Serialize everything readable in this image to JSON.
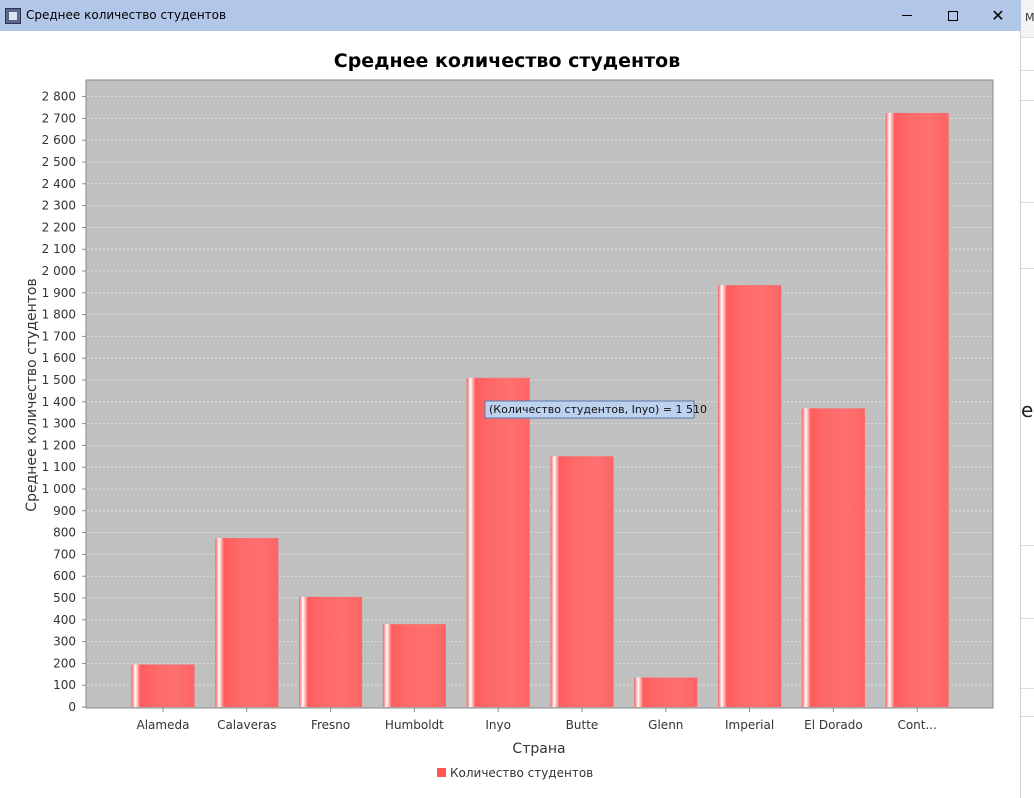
{
  "window": {
    "title": "Среднее количество студентов",
    "controls": {
      "minimize": "minimize-icon",
      "maximize": "maximize-icon",
      "close": "close-icon"
    }
  },
  "side_panel": {
    "top_text": "M",
    "letter": "e"
  },
  "chart_data": {
    "type": "bar",
    "title": "Среднее количество студентов",
    "xlabel": "Страна",
    "ylabel": "Среднее количество студентов",
    "categories": [
      "Alameda",
      "Calaveras",
      "Fresno",
      "Humboldt",
      "Inyo",
      "Butte",
      "Glenn",
      "Imperial",
      "El Dorado",
      "Cont..."
    ],
    "series": [
      {
        "name": "Количество студентов",
        "values": [
          195,
          775,
          505,
          380,
          1510,
          1150,
          135,
          1935,
          1370,
          2725
        ]
      }
    ],
    "ylim": [
      0,
      2850
    ],
    "yticks": [
      0,
      100,
      200,
      300,
      400,
      500,
      600,
      700,
      800,
      900,
      1000,
      1100,
      1200,
      1300,
      1400,
      1500,
      1600,
      1700,
      1800,
      1900,
      2000,
      2100,
      2200,
      2300,
      2400,
      2500,
      2600,
      2700,
      2800
    ],
    "ytick_labels": [
      "0",
      "100",
      "200",
      "300",
      "400",
      "500",
      "600",
      "700",
      "800",
      "900",
      "1 000",
      "1 100",
      "1 200",
      "1 300",
      "1 400",
      "1 500",
      "1 600",
      "1 700",
      "1 800",
      "1 900",
      "2 000",
      "2 100",
      "2 200",
      "2 300",
      "2 400",
      "2 500",
      "2 600",
      "2 700",
      "2 800"
    ],
    "grid": true,
    "legend_position": "bottom",
    "colors": {
      "bar": "#ff6666",
      "plot_background": "#c0c0c0",
      "grid": "#e6e6e6"
    },
    "tooltip": {
      "text": "(Количество студентов, Inyo) = 1 510",
      "category": "Inyo"
    }
  }
}
